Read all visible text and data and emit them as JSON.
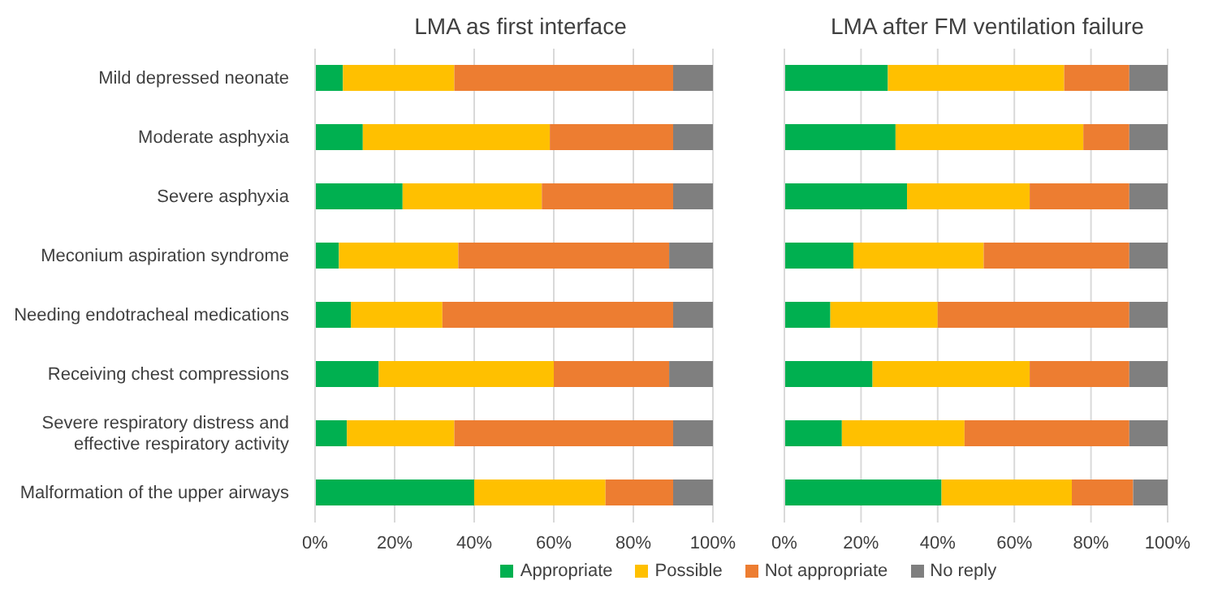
{
  "chart_data": [
    {
      "type": "bar",
      "title": "LMA as first interface",
      "orientation": "horizontal",
      "stacked": true,
      "categories": [
        "Mild depressed neonate",
        "Moderate asphyxia",
        "Severe asphyxia",
        "Meconium aspiration syndrome",
        "Needing endotracheal medications",
        "Receiving chest compressions",
        "Severe respiratory distress and effective respiratory activity",
        "Malformation of the upper airways"
      ],
      "series": [
        {
          "name": "Appropriate",
          "color": "#00b050",
          "values": [
            7,
            12,
            22,
            6,
            9,
            16,
            8,
            40
          ]
        },
        {
          "name": "Possible",
          "color": "#ffc000",
          "values": [
            28,
            47,
            35,
            30,
            23,
            44,
            27,
            33
          ]
        },
        {
          "name": "Not appropriate",
          "color": "#ed7d31",
          "values": [
            55,
            31,
            33,
            53,
            58,
            29,
            55,
            17
          ]
        },
        {
          "name": "No reply",
          "color": "#7f7f7f",
          "values": [
            10,
            10,
            10,
            11,
            10,
            11,
            10,
            10
          ]
        }
      ],
      "xlim": [
        0,
        100
      ],
      "xticks": [
        {
          "value": 0,
          "label": "0%"
        },
        {
          "value": 20,
          "label": "20%"
        },
        {
          "value": 40,
          "label": "40%"
        },
        {
          "value": 60,
          "label": "60%"
        },
        {
          "value": 80,
          "label": "80%"
        },
        {
          "value": 100,
          "label": "100%"
        }
      ],
      "grid": "x",
      "legend": "bottom"
    },
    {
      "type": "bar",
      "title": "LMA after FM ventilation failure",
      "orientation": "horizontal",
      "stacked": true,
      "series": [
        {
          "color": "#00b050",
          "values": [
            27,
            29,
            32,
            18,
            12,
            23,
            15,
            41
          ]
        },
        {
          "color": "#ffc000",
          "values": [
            46,
            49,
            32,
            34,
            28,
            41,
            32,
            34
          ]
        },
        {
          "color": "#ed7d31",
          "values": [
            17,
            12,
            26,
            38,
            50,
            26,
            43,
            16
          ]
        },
        {
          "color": "#7f7f7f",
          "values": [
            10,
            10,
            10,
            10,
            10,
            10,
            10,
            9
          ]
        }
      ],
      "xlim": [
        0,
        100
      ],
      "xticks": [
        {
          "value": 0,
          "label": "0%"
        },
        {
          "value": 20,
          "label": "20%"
        },
        {
          "value": 40,
          "label": "40%"
        },
        {
          "value": 60,
          "label": "60%"
        },
        {
          "value": 80,
          "label": "80%"
        },
        {
          "value": 100,
          "label": "100%"
        }
      ],
      "grid": "x",
      "tick_labels": "x"
    }
  ]
}
